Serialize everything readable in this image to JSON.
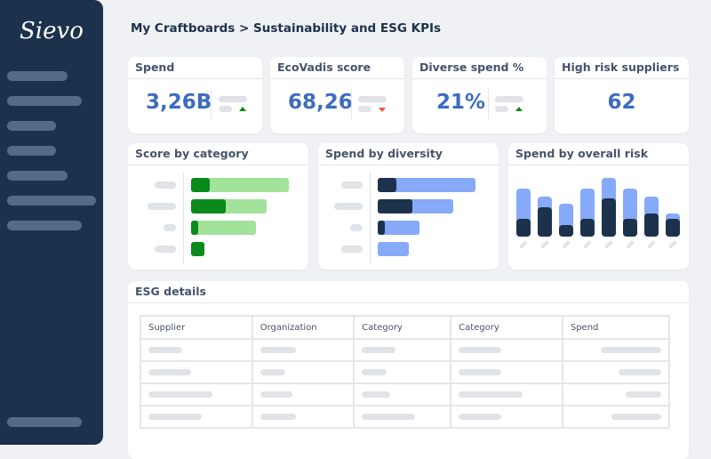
{
  "app": {
    "logo": "Sievo",
    "breadcrumb": "My Craftboards > Sustainability and ESG KPIs"
  },
  "colors": {
    "sidebar": "#1c314b",
    "accent": "#3d6cc0",
    "green_dark": "#0a8a1a",
    "green_light": "#a2e29a",
    "navy": "#1c314b",
    "blue_light": "#86aaf8",
    "up": "#0a8a1a",
    "down": "#e8553d"
  },
  "kpis": [
    {
      "title": "Spend",
      "value": "3,26B",
      "trend": "up"
    },
    {
      "title": "EcoVadis score",
      "value": "68,26",
      "trend": "down"
    },
    {
      "title": "Diverse spend %",
      "value": "21%",
      "trend": "up"
    },
    {
      "title": "High risk suppliers",
      "value": "62"
    }
  ],
  "score_by_category": {
    "title": "Score by category",
    "bars": [
      {
        "total": 1.0,
        "part": 0.19
      },
      {
        "total": 0.77,
        "part": 0.35
      },
      {
        "total": 0.66,
        "part": 0.07
      },
      {
        "total": 0.14,
        "part": 0.14
      }
    ]
  },
  "spend_by_diversity": {
    "title": "Spend by diversity",
    "bars": [
      {
        "total": 1.0,
        "part": 0.19
      },
      {
        "total": 0.77,
        "part": 0.35
      },
      {
        "total": 0.43,
        "part": 0.07
      },
      {
        "total": 0.32,
        "part": 0
      }
    ]
  },
  "spend_by_risk": {
    "title": "Spend by overall risk",
    "bars": [
      {
        "total": 0.82,
        "part": 0.3
      },
      {
        "total": 0.68,
        "part": 0.5
      },
      {
        "total": 0.56,
        "part": 0.2
      },
      {
        "total": 0.82,
        "part": 0.3
      },
      {
        "total": 1.0,
        "part": 0.65
      },
      {
        "total": 0.82,
        "part": 0.3
      },
      {
        "total": 0.68,
        "part": 0.4
      },
      {
        "total": 0.39,
        "part": 0.3
      }
    ]
  },
  "esg": {
    "title": "ESG details",
    "columns": [
      "Supplier",
      "Organization",
      "Category",
      "Category",
      "Spend"
    ]
  }
}
